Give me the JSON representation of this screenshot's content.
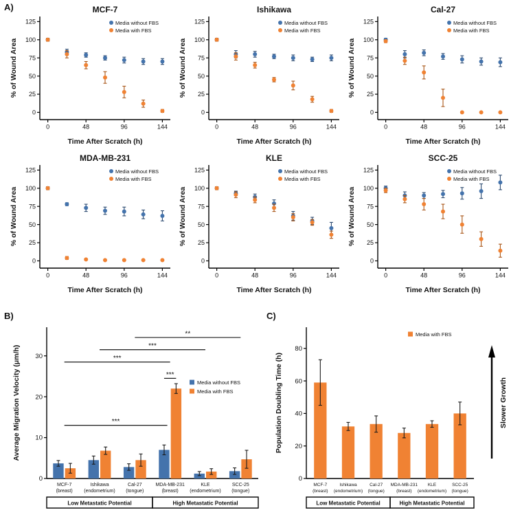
{
  "panels": {
    "a": "A)",
    "b": "B)",
    "c": "C)"
  },
  "colors": {
    "blue": "#4473AC",
    "orange": "#F08233",
    "blue_dark": "#2C4A70",
    "orange_dark": "#A85618",
    "error": "#1a1a1a",
    "axis": "#000000"
  },
  "legend_labels": {
    "without": "Media without FBS",
    "with": "Media with FBS"
  },
  "chart_data": [
    {
      "id": "mcf7",
      "type": "scatter",
      "title": "MCF-7",
      "xlabel": "Time After Scratch (h)",
      "ylabel": "% of Wound Area",
      "x": [
        0,
        24,
        48,
        72,
        96,
        120,
        144
      ],
      "xticks": [
        0,
        48,
        96,
        144
      ],
      "yticks": [
        0,
        25,
        50,
        75,
        100,
        125
      ],
      "xlim": [
        -10,
        154
      ],
      "ylim": [
        -10,
        132
      ],
      "series": [
        {
          "name": "Media without FBS",
          "color": "blue",
          "values": [
            100,
            83,
            79,
            75,
            72,
            70,
            70
          ],
          "errors": [
            2,
            4,
            3,
            3,
            4,
            4,
            4
          ]
        },
        {
          "name": "Media with FBS",
          "color": "orange",
          "values": [
            100,
            80,
            65,
            48,
            28,
            12,
            2
          ],
          "errors": [
            2,
            5,
            5,
            8,
            8,
            5,
            2
          ]
        }
      ]
    },
    {
      "id": "ishikawa",
      "type": "scatter",
      "title": "Ishikawa",
      "xlabel": "Time After Scratch (h)",
      "ylabel": "% of Wound Area",
      "x": [
        0,
        24,
        48,
        72,
        96,
        120,
        144
      ],
      "xticks": [
        0,
        48,
        96,
        144
      ],
      "yticks": [
        0,
        25,
        50,
        75,
        100,
        125
      ],
      "xlim": [
        -10,
        154
      ],
      "ylim": [
        -10,
        132
      ],
      "series": [
        {
          "name": "Media without FBS",
          "color": "blue",
          "values": [
            100,
            80,
            80,
            77,
            75,
            73,
            75
          ],
          "errors": [
            2,
            5,
            4,
            3,
            4,
            3,
            4
          ]
        },
        {
          "name": "Media with FBS",
          "color": "orange",
          "values": [
            100,
            77,
            65,
            45,
            37,
            18,
            2
          ],
          "errors": [
            2,
            5,
            4,
            3,
            6,
            4,
            2
          ]
        }
      ]
    },
    {
      "id": "cal27",
      "type": "scatter",
      "title": "Cal-27",
      "xlabel": "Time After Scratch (h)",
      "ylabel": "% of Wound Area",
      "x": [
        0,
        24,
        48,
        72,
        96,
        120,
        144
      ],
      "xticks": [
        0,
        48,
        96,
        144
      ],
      "yticks": [
        0,
        25,
        50,
        75,
        100,
        125
      ],
      "xlim": [
        -10,
        154
      ],
      "ylim": [
        -10,
        132
      ],
      "series": [
        {
          "name": "Media without FBS",
          "color": "blue",
          "values": [
            100,
            80,
            82,
            77,
            73,
            70,
            69
          ],
          "errors": [
            2,
            5,
            4,
            4,
            5,
            5,
            6
          ]
        },
        {
          "name": "Media with FBS",
          "color": "orange",
          "values": [
            98,
            71,
            55,
            20,
            0,
            0,
            0
          ],
          "errors": [
            2,
            5,
            9,
            12,
            1,
            1,
            1
          ]
        }
      ]
    },
    {
      "id": "mda",
      "type": "scatter",
      "title": "MDA-MB-231",
      "xlabel": "Time After Scratch (h)",
      "ylabel": "% of Wound Area",
      "x": [
        0,
        24,
        48,
        72,
        96,
        120,
        144
      ],
      "xticks": [
        0,
        48,
        96,
        144
      ],
      "yticks": [
        0,
        25,
        50,
        75,
        100,
        125
      ],
      "xlim": [
        -10,
        154
      ],
      "ylim": [
        -10,
        132
      ],
      "series": [
        {
          "name": "Media without FBS",
          "color": "blue",
          "values": [
            100,
            78,
            73,
            69,
            68,
            64,
            62
          ],
          "errors": [
            2,
            2,
            5,
            5,
            6,
            6,
            7
          ]
        },
        {
          "name": "Media with FBS",
          "color": "orange",
          "values": [
            100,
            4,
            2,
            1,
            1,
            1,
            1
          ],
          "errors": [
            2,
            2,
            1,
            1,
            1,
            1,
            1
          ]
        }
      ]
    },
    {
      "id": "kle",
      "type": "scatter",
      "title": "KLE",
      "xlabel": "Time After Scratch (h)",
      "ylabel": "% of Wound Area",
      "x": [
        0,
        24,
        48,
        72,
        96,
        120,
        144
      ],
      "xticks": [
        0,
        48,
        96,
        144
      ],
      "yticks": [
        0,
        25,
        50,
        75,
        100,
        125
      ],
      "xlim": [
        -10,
        154
      ],
      "ylim": [
        -10,
        132
      ],
      "series": [
        {
          "name": "Media without FBS",
          "color": "blue",
          "values": [
            100,
            93,
            88,
            79,
            62,
            55,
            45
          ],
          "errors": [
            2,
            3,
            4,
            5,
            6,
            5,
            8
          ]
        },
        {
          "name": "Media with FBS",
          "color": "orange",
          "values": [
            100,
            91,
            84,
            73,
            60,
            53,
            36
          ],
          "errors": [
            2,
            4,
            4,
            5,
            5,
            4,
            5
          ]
        }
      ]
    },
    {
      "id": "scc25",
      "type": "scatter",
      "title": "SCC-25",
      "xlabel": "Time After Scratch (h)",
      "ylabel": "% of Wound Area",
      "x": [
        0,
        24,
        48,
        72,
        96,
        120,
        144
      ],
      "xticks": [
        0,
        48,
        96,
        144
      ],
      "yticks": [
        0,
        25,
        50,
        75,
        100,
        125
      ],
      "xlim": [
        -10,
        154
      ],
      "ylim": [
        -10,
        132
      ],
      "series": [
        {
          "name": "Media without FBS",
          "color": "blue",
          "values": [
            100,
            90,
            90,
            92,
            93,
            96,
            108
          ],
          "errors": [
            3,
            5,
            4,
            5,
            8,
            10,
            10
          ]
        },
        {
          "name": "Media with FBS",
          "color": "orange",
          "values": [
            97,
            85,
            78,
            68,
            50,
            30,
            14
          ],
          "errors": [
            3,
            5,
            8,
            10,
            12,
            10,
            9
          ]
        }
      ]
    },
    {
      "id": "velocity",
      "type": "bar",
      "ylabel": "Average Migration Velocity (μm/h)",
      "categories": [
        [
          "MCF-7",
          "(breast)"
        ],
        [
          "Ishikawa",
          "(endometrium)"
        ],
        [
          "Cal-27",
          "(tongue)"
        ],
        [
          "MDA-MB-231",
          "(breast)"
        ],
        [
          "KLE",
          "(endometrium)"
        ],
        [
          "SCC-25",
          "(tongue)"
        ]
      ],
      "yticks": [
        0,
        10,
        20,
        30
      ],
      "ylim": [
        0,
        37
      ],
      "series": [
        {
          "name": "Media without FBS",
          "color": "blue",
          "values": [
            3.7,
            4.5,
            2.8,
            7.0,
            1.2,
            1.8
          ],
          "errors": [
            0.7,
            1.0,
            0.8,
            1.2,
            0.5,
            0.8
          ]
        },
        {
          "name": "Media with FBS",
          "color": "orange",
          "values": [
            2.5,
            6.8,
            4.5,
            22.0,
            1.7,
            4.7
          ],
          "errors": [
            1.2,
            0.9,
            1.5,
            1.2,
            0.7,
            2.2
          ]
        }
      ],
      "annotations": [
        {
          "x1": 0.5,
          "x2": 3.42,
          "y": 13,
          "label": "***"
        },
        {
          "x1": 3.33,
          "x2": 3.67,
          "y": 24.5,
          "label": "***"
        },
        {
          "x1": 0.5,
          "x2": 3.5,
          "y": 28.5,
          "label": "***"
        },
        {
          "x1": 1.5,
          "x2": 4.5,
          "y": 31.5,
          "label": "***"
        },
        {
          "x1": 2.5,
          "x2": 5.5,
          "y": 34.5,
          "label": "**"
        }
      ],
      "legend": true,
      "bands": [
        {
          "label": "Low Metastatic Potential",
          "from": 0,
          "to": 3
        },
        {
          "label": "High Metastatic Potential",
          "from": 3,
          "to": 6
        }
      ]
    },
    {
      "id": "doubling",
      "type": "bar",
      "ylabel": "Population Doubling Time (h)",
      "categories": [
        [
          "MCF-7",
          "(breast)"
        ],
        [
          "Ishikawa",
          "(endometrium)"
        ],
        [
          "Cal-27",
          "(tongue)"
        ],
        [
          "MDA-MB-231",
          "(breast)"
        ],
        [
          "KLE",
          "(endometrium)"
        ],
        [
          "SCC-25",
          "(tongue)"
        ]
      ],
      "yticks": [
        0,
        20,
        40,
        60,
        80
      ],
      "ylim": [
        0,
        93
      ],
      "series": [
        {
          "name": "Media with FBS",
          "color": "orange",
          "values": [
            59,
            32,
            33.5,
            28,
            33.5,
            40
          ],
          "errors": [
            14,
            2.5,
            5,
            3,
            2,
            7
          ]
        }
      ],
      "legend": true,
      "right_arrow_label": "Slower Growth",
      "bands": [
        {
          "label": "Low Metastatic Potential",
          "from": 0,
          "to": 3
        },
        {
          "label": "High Metastatic Potential",
          "from": 3,
          "to": 6
        }
      ]
    }
  ]
}
